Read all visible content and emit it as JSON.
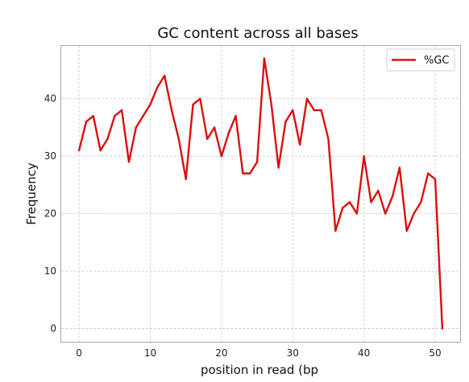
{
  "chart_data": {
    "type": "line",
    "title": "GC content across all bases",
    "xlabel": "position in read (bp",
    "ylabel": "Frequency",
    "xlim": [
      -2.5,
      53.5
    ],
    "ylim": [
      -2.3,
      49.2
    ],
    "xticks": [
      0,
      10,
      20,
      30,
      40,
      50
    ],
    "yticks": [
      0,
      10,
      20,
      30,
      40
    ],
    "xtick_labels": [
      "0",
      "10",
      "20",
      "30",
      "40",
      "50"
    ],
    "ytick_labels": [
      "0",
      "10",
      "20",
      "30",
      "40"
    ],
    "grid": true,
    "legend_position": "top-right",
    "series": [
      {
        "name": "%GC",
        "color": "#d91010",
        "x": [
          0,
          1,
          2,
          3,
          4,
          5,
          6,
          7,
          8,
          9,
          10,
          11,
          12,
          13,
          14,
          15,
          16,
          17,
          18,
          19,
          20,
          21,
          22,
          23,
          24,
          25,
          26,
          27,
          28,
          29,
          30,
          31,
          32,
          33,
          34,
          35,
          36,
          37,
          38,
          39,
          40,
          41,
          42,
          43,
          44,
          45,
          46,
          47,
          48,
          49,
          50,
          51
        ],
        "values": [
          31,
          36,
          37,
          31,
          33,
          37,
          38,
          29,
          35,
          37,
          39,
          42,
          44,
          38,
          33,
          26,
          39,
          40,
          33,
          35,
          30,
          34,
          37,
          27,
          27,
          29,
          47,
          39,
          28,
          36,
          38,
          32,
          40,
          38,
          38,
          33,
          17,
          21,
          22,
          20,
          30,
          22,
          24,
          20,
          23,
          28,
          17,
          20,
          22,
          27,
          26,
          0
        ]
      }
    ]
  }
}
